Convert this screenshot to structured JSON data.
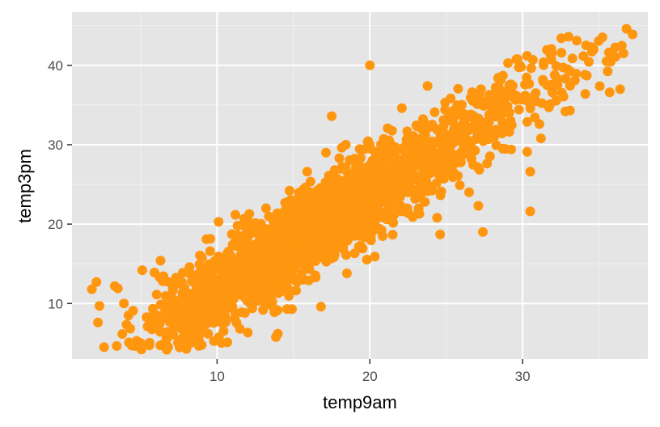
{
  "chart_data": {
    "type": "scatter",
    "xlabel": "temp9am",
    "ylabel": "temp3pm",
    "xlim": [
      0.5,
      38.2
    ],
    "ylim": [
      3.0,
      46.7
    ],
    "x_ticks": [
      10,
      20,
      30
    ],
    "x_minor": [
      5,
      15,
      25,
      35
    ],
    "y_ticks": [
      10,
      20,
      30,
      40
    ],
    "y_minor": [
      15,
      25,
      35,
      45
    ],
    "x_tick_labels": [
      "10",
      "20",
      "30"
    ],
    "y_tick_labels": [
      "10",
      "20",
      "30",
      "40"
    ],
    "grid": true,
    "point_color": "#ff960f",
    "panel_color": "#e5e5e5",
    "points": [
      [
        2.6,
        4.5
      ],
      [
        6.5,
        4.9
      ],
      [
        11.5,
        6.8
      ],
      [
        2.1,
        12.7
      ],
      [
        2.3,
        9.7
      ],
      [
        2.2,
        7.6
      ],
      [
        1.8,
        11.8
      ],
      [
        3.3,
        12.2
      ],
      [
        3.5,
        11.9
      ],
      [
        3.9,
        10.0
      ],
      [
        4.2,
        8.5
      ],
      [
        5.1,
        14.2
      ],
      [
        5.9,
        13.9
      ],
      [
        6.3,
        15.4
      ],
      [
        7.1,
        12.5
      ],
      [
        7.5,
        8.2
      ],
      [
        8.0,
        7.5
      ],
      [
        8.6,
        10.9
      ],
      [
        9.0,
        12.5
      ],
      [
        9.3,
        18.1
      ],
      [
        10.1,
        20.3
      ],
      [
        11.0,
        9.6
      ],
      [
        11.6,
        8.9
      ],
      [
        12.0,
        11.9
      ],
      [
        12.3,
        9.4
      ],
      [
        12.8,
        18.2
      ],
      [
        13.2,
        22.0
      ],
      [
        13.6,
        17.5
      ],
      [
        14.0,
        11.3
      ],
      [
        14.4,
        18.0
      ],
      [
        14.9,
        9.3
      ],
      [
        15.4,
        13.3
      ],
      [
        15.9,
        26.6
      ],
      [
        16.3,
        23.7
      ],
      [
        16.8,
        9.6
      ],
      [
        17.2,
        16.2
      ],
      [
        17.5,
        33.6
      ],
      [
        18.1,
        18.4
      ],
      [
        18.5,
        13.8
      ],
      [
        19.0,
        26.4
      ],
      [
        19.4,
        17.3
      ],
      [
        20.0,
        40.0
      ],
      [
        20.5,
        27.8
      ],
      [
        21.1,
        20.6
      ],
      [
        21.5,
        29.8
      ],
      [
        22.1,
        34.6
      ],
      [
        22.6,
        25.0
      ],
      [
        23.2,
        22.0
      ],
      [
        23.7,
        30.5
      ],
      [
        24.4,
        20.8
      ],
      [
        24.6,
        18.7
      ],
      [
        25.3,
        26.5
      ],
      [
        25.8,
        33.8
      ],
      [
        26.5,
        24.0
      ],
      [
        27.1,
        22.3
      ],
      [
        27.4,
        19.0
      ],
      [
        28.0,
        35.1
      ],
      [
        28.7,
        29.5
      ],
      [
        29.3,
        36.5
      ],
      [
        29.9,
        39.8
      ],
      [
        30.5,
        21.6
      ],
      [
        30.3,
        29.1
      ],
      [
        30.5,
        26.6
      ],
      [
        31.1,
        32.6
      ],
      [
        31.2,
        30.8
      ],
      [
        31.8,
        35.1
      ],
      [
        32.2,
        39.9
      ],
      [
        32.8,
        34.2
      ],
      [
        33.0,
        43.6
      ],
      [
        34.2,
        38.7
      ],
      [
        34.5,
        42.3
      ],
      [
        35.5,
        40.5
      ],
      [
        35.7,
        36.6
      ],
      [
        36.6,
        41.5
      ],
      [
        36.8,
        44.6
      ],
      [
        37.2,
        43.9
      ],
      [
        34.1,
        36.4
      ]
    ],
    "cloud": {
      "x_range": [
        2.5,
        36.5
      ],
      "slope": 1.2,
      "intercept": -0.2,
      "spread": 2.6,
      "count": 2400
    }
  }
}
